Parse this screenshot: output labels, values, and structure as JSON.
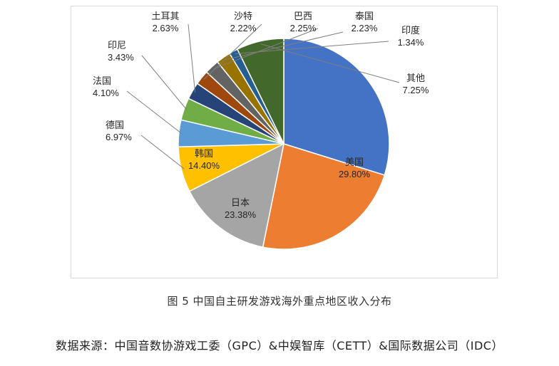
{
  "chart_data": {
    "type": "pie",
    "title": "",
    "categories": [
      "美国",
      "日本",
      "韩国",
      "德国",
      "法国",
      "印尼",
      "土耳其",
      "沙特",
      "巴西",
      "泰国",
      "印度",
      "其他"
    ],
    "values": [
      29.8,
      23.38,
      14.4,
      6.97,
      4.1,
      3.43,
      2.63,
      2.22,
      2.25,
      2.23,
      1.34,
      7.25
    ],
    "value_labels": [
      "29.80%",
      "23.38%",
      "14.40%",
      "6.97%",
      "4.10%",
      "3.43%",
      "2.63%",
      "2.22%",
      "2.25%",
      "2.23%",
      "1.34%",
      "7.25%"
    ],
    "colors": [
      "#4472c4",
      "#ed7d31",
      "#a5a5a5",
      "#ffc000",
      "#5b9bd5",
      "#70ad47",
      "#264478",
      "#9e480e",
      "#636363",
      "#997300",
      "#255e91",
      "#43682b"
    ],
    "legend": "none"
  },
  "figure": {
    "caption": "图 5  中国自主研发游戏海外重点地区收入分布",
    "source": "数据来源：中国音数协游戏工委（GPC）&中娱智库（CETT）&国际数据公司（IDC）"
  }
}
